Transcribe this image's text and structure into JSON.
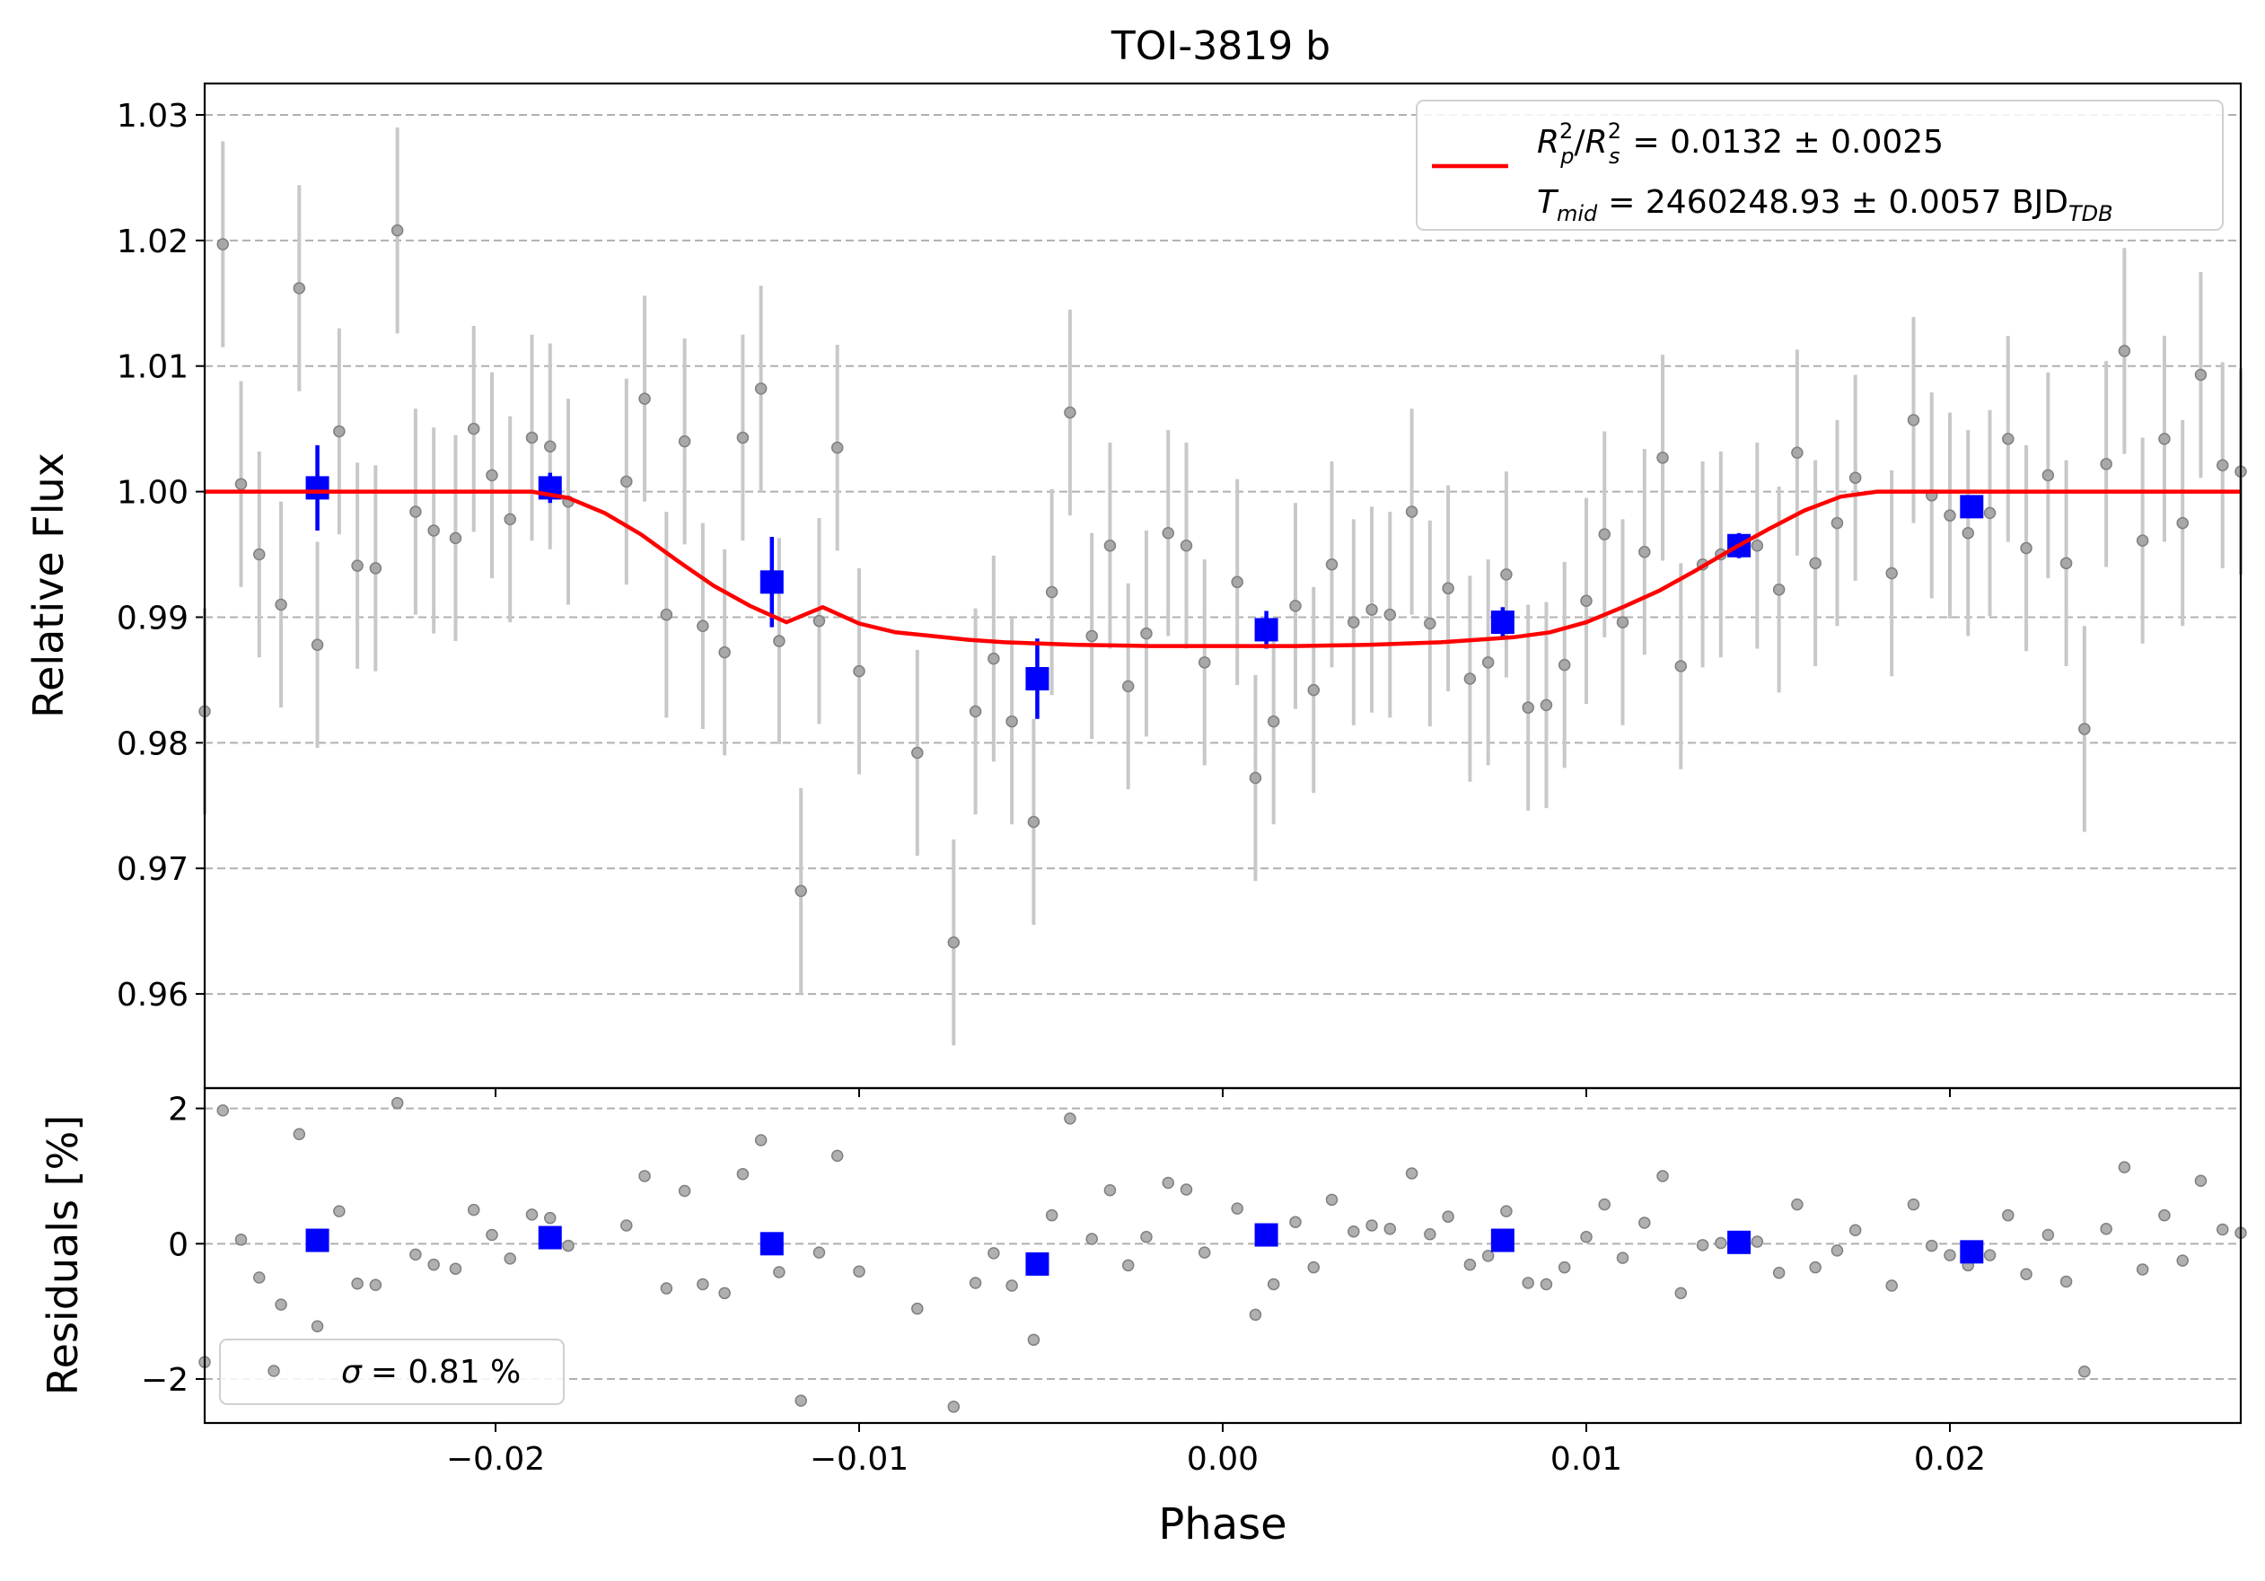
{
  "chart_data": {
    "type": "scatter",
    "title": "TOI-3819 b",
    "xlabel": "Phase",
    "xlim": [
      -0.028,
      0.028
    ],
    "xticks": [
      -0.02,
      -0.01,
      0.0,
      0.01,
      0.02
    ],
    "xtick_labels": [
      "−0.02",
      "−0.01",
      "0.00",
      "0.01",
      "0.02"
    ],
    "colors": {
      "raw": "#808080",
      "errbar": "#c8c8c8",
      "binned": "#0000ff",
      "model": "#ff0000",
      "grid": "#b0b0b0"
    },
    "flux_panel": {
      "ylabel": "Relative Flux",
      "ylim": [
        0.9525,
        1.0325
      ],
      "yticks": [
        0.96,
        0.97,
        0.98,
        0.99,
        1.0,
        1.01,
        1.02,
        1.03
      ],
      "ytick_labels": [
        "0.96",
        "0.97",
        "0.98",
        "0.99",
        "1.00",
        "1.01",
        "1.02",
        "1.03"
      ],
      "grid": true,
      "legend": {
        "placement": "top-right",
        "line1_lhs": "R²ₚ/R²ₛ",
        "line1_value": "= 0.0132 ± 0.0025",
        "line2_lhs": "T",
        "line2_sub": "mid",
        "line2_value": "= 2460248.93 ± 0.0057 BJD",
        "line2_unit_sub": "TDB"
      },
      "raw_err": 0.0082,
      "raw_points": [
        [
          -0.028,
          0.9825
        ],
        [
          -0.0275,
          1.0197
        ],
        [
          -0.027,
          1.0006
        ],
        [
          -0.0265,
          0.995
        ],
        [
          -0.0259,
          0.991
        ],
        [
          -0.0254,
          1.0162
        ],
        [
          -0.0249,
          0.9878
        ],
        [
          -0.0243,
          1.0048
        ],
        [
          -0.0238,
          0.9941
        ],
        [
          -0.0233,
          0.9939
        ],
        [
          -0.0227,
          1.0208
        ],
        [
          -0.0222,
          0.9984
        ],
        [
          -0.0217,
          0.9969
        ],
        [
          -0.0211,
          0.9963
        ],
        [
          -0.0206,
          1.005
        ],
        [
          -0.0201,
          1.0013
        ],
        [
          -0.0196,
          0.9978
        ],
        [
          -0.019,
          1.0043
        ],
        [
          -0.0185,
          1.0036
        ],
        [
          -0.018,
          0.9992
        ],
        [
          -0.0164,
          1.0008
        ],
        [
          -0.0159,
          1.0074
        ],
        [
          -0.0153,
          0.9902
        ],
        [
          -0.0148,
          1.004
        ],
        [
          -0.0143,
          0.9893
        ],
        [
          -0.0137,
          0.9872
        ],
        [
          -0.0132,
          1.0043
        ],
        [
          -0.0127,
          1.0082
        ],
        [
          -0.0122,
          0.9881
        ],
        [
          -0.0116,
          0.9682
        ],
        [
          -0.0111,
          0.9897
        ],
        [
          -0.0106,
          1.0035
        ],
        [
          -0.01,
          0.9857
        ],
        [
          -0.0084,
          0.9792
        ],
        [
          -0.0074,
          0.9641
        ],
        [
          -0.0068,
          0.9825
        ],
        [
          -0.0063,
          0.9867
        ],
        [
          -0.0058,
          0.9817
        ],
        [
          -0.0052,
          0.9737
        ],
        [
          -0.0047,
          0.992
        ],
        [
          -0.0042,
          1.0063
        ],
        [
          -0.0036,
          0.9885
        ],
        [
          -0.0031,
          0.9957
        ],
        [
          -0.0026,
          0.9845
        ],
        [
          -0.0021,
          0.9887
        ],
        [
          -0.0015,
          0.9967
        ],
        [
          -0.001,
          0.9957
        ],
        [
          -0.0005,
          0.9864
        ],
        [
          0.0004,
          0.9928
        ],
        [
          0.0009,
          0.9772
        ],
        [
          0.0014,
          0.9817
        ],
        [
          0.002,
          0.9909
        ],
        [
          0.0025,
          0.9842
        ],
        [
          0.003,
          0.9942
        ],
        [
          0.0036,
          0.9896
        ],
        [
          0.0041,
          0.9906
        ],
        [
          0.0046,
          0.9902
        ],
        [
          0.0052,
          0.9984
        ],
        [
          0.0057,
          0.9895
        ],
        [
          0.0062,
          0.9923
        ],
        [
          0.0068,
          0.9851
        ],
        [
          0.0073,
          0.9864
        ],
        [
          0.0078,
          0.9934
        ],
        [
          0.0084,
          0.9828
        ],
        [
          0.0089,
          0.983
        ],
        [
          0.0094,
          0.9862
        ],
        [
          0.01,
          0.9913
        ],
        [
          0.0105,
          0.9966
        ],
        [
          0.011,
          0.9896
        ],
        [
          0.0116,
          0.9952
        ],
        [
          0.0121,
          1.0027
        ],
        [
          0.0126,
          0.9861
        ],
        [
          0.0132,
          0.9942
        ],
        [
          0.0137,
          0.995
        ],
        [
          0.0147,
          0.9957
        ],
        [
          0.0153,
          0.9922
        ],
        [
          0.0158,
          1.0031
        ],
        [
          0.0163,
          0.9943
        ],
        [
          0.0169,
          0.9975
        ],
        [
          0.0174,
          1.0011
        ],
        [
          0.0184,
          0.9935
        ],
        [
          0.019,
          1.0057
        ],
        [
          0.0195,
          0.9997
        ],
        [
          0.02,
          0.9981
        ],
        [
          0.0205,
          0.9967
        ],
        [
          0.0211,
          0.9983
        ],
        [
          0.0216,
          1.0042
        ],
        [
          0.0221,
          0.9955
        ],
        [
          0.0227,
          1.0013
        ],
        [
          0.0232,
          0.9943
        ],
        [
          0.0237,
          0.9811
        ],
        [
          0.0243,
          1.0022
        ],
        [
          0.0248,
          1.0112
        ],
        [
          0.0253,
          0.9961
        ],
        [
          0.0259,
          1.0042
        ],
        [
          0.0264,
          0.9975
        ],
        [
          0.0269,
          1.0093
        ],
        [
          0.0275,
          1.0021
        ],
        [
          0.028,
          1.0016
        ]
      ],
      "binned_points": [
        {
          "x": -0.0249,
          "y": 1.0003,
          "err": 0.0034
        },
        {
          "x": -0.0185,
          "y": 1.0003,
          "err": 0.0012
        },
        {
          "x": -0.0124,
          "y": 0.9928,
          "err": 0.0036
        },
        {
          "x": -0.0051,
          "y": 0.9851,
          "err": 0.0032
        },
        {
          "x": 0.0012,
          "y": 0.989,
          "err": 0.0015
        },
        {
          "x": 0.0077,
          "y": 0.9896,
          "err": 0.0012
        },
        {
          "x": 0.0142,
          "y": 0.9957,
          "err": 0.001
        },
        {
          "x": 0.0206,
          "y": 0.9988,
          "err": 0.0008
        }
      ],
      "model_curve": {
        "x": [
          -0.028,
          -0.019,
          -0.018,
          -0.017,
          -0.016,
          -0.015,
          -0.014,
          -0.013,
          -0.012,
          -0.011,
          -0.01,
          -0.009,
          -0.008,
          -0.007,
          -0.006,
          -0.004,
          -0.002,
          0.0,
          0.002,
          0.004,
          0.006,
          0.007,
          0.008,
          0.009,
          0.01,
          0.011,
          0.012,
          0.013,
          0.014,
          0.015,
          0.016,
          0.017,
          0.018,
          0.019,
          0.028
        ],
        "y": [
          1.0,
          1.0,
          0.9995,
          0.9983,
          0.9966,
          0.9945,
          0.9925,
          0.9909,
          0.9896,
          0.9908,
          0.9895,
          0.9888,
          0.9885,
          0.9882,
          0.988,
          0.9878,
          0.9877,
          0.9877,
          0.9877,
          0.9878,
          0.988,
          0.9882,
          0.9884,
          0.9888,
          0.9896,
          0.9908,
          0.9921,
          0.9937,
          0.9954,
          0.997,
          0.9985,
          0.9996,
          1.0,
          1.0,
          1.0
        ]
      }
    },
    "residual_panel": {
      "ylabel": "Residuals [%]",
      "ylim": [
        -2.65,
        2.3
      ],
      "yticks": [
        -2,
        0,
        2
      ],
      "ytick_labels": [
        "−2",
        "0",
        "2"
      ],
      "grid": true,
      "legend": {
        "placement": "bottom-left",
        "sigma_symbol": "σ",
        "sigma_value": "= 0.81 %"
      },
      "raw_points": [
        [
          -0.028,
          -1.75
        ],
        [
          -0.0275,
          1.97
        ],
        [
          -0.027,
          0.06
        ],
        [
          -0.0265,
          -0.5
        ],
        [
          -0.0259,
          -0.9
        ],
        [
          -0.0254,
          1.62
        ],
        [
          -0.0249,
          -1.22
        ],
        [
          -0.0243,
          0.48
        ],
        [
          -0.0238,
          -0.59
        ],
        [
          -0.0233,
          -0.61
        ],
        [
          -0.0227,
          2.08
        ],
        [
          -0.0222,
          -0.16
        ],
        [
          -0.0217,
          -0.31
        ],
        [
          -0.0211,
          -0.37
        ],
        [
          -0.0206,
          0.5
        ],
        [
          -0.0201,
          0.13
        ],
        [
          -0.0196,
          -0.22
        ],
        [
          -0.019,
          0.43
        ],
        [
          -0.0185,
          0.38
        ],
        [
          -0.018,
          -0.03
        ],
        [
          -0.0164,
          0.27
        ],
        [
          -0.0159,
          1.0
        ],
        [
          -0.0153,
          -0.66
        ],
        [
          -0.0148,
          0.78
        ],
        [
          -0.0143,
          -0.6
        ],
        [
          -0.0137,
          -0.73
        ],
        [
          -0.0132,
          1.03
        ],
        [
          -0.0127,
          1.53
        ],
        [
          -0.0122,
          -0.42
        ],
        [
          -0.0116,
          -2.32
        ],
        [
          -0.0111,
          -0.13
        ],
        [
          -0.0106,
          1.3
        ],
        [
          -0.01,
          -0.41
        ],
        [
          -0.0084,
          -0.96
        ],
        [
          -0.0074,
          -2.41
        ],
        [
          -0.0068,
          -0.58
        ],
        [
          -0.0063,
          -0.14
        ],
        [
          -0.0058,
          -0.62
        ],
        [
          -0.0052,
          -1.42
        ],
        [
          -0.0047,
          0.42
        ],
        [
          -0.0042,
          1.85
        ],
        [
          -0.0036,
          0.07
        ],
        [
          -0.0031,
          0.79
        ],
        [
          -0.0026,
          -0.32
        ],
        [
          -0.0021,
          0.1
        ],
        [
          -0.0015,
          0.9
        ],
        [
          -0.001,
          0.8
        ],
        [
          -0.0005,
          -0.13
        ],
        [
          0.0004,
          0.52
        ],
        [
          0.0009,
          -1.05
        ],
        [
          0.0014,
          -0.6
        ],
        [
          0.002,
          0.32
        ],
        [
          0.0025,
          -0.35
        ],
        [
          0.003,
          0.65
        ],
        [
          0.0036,
          0.18
        ],
        [
          0.0041,
          0.27
        ],
        [
          0.0046,
          0.22
        ],
        [
          0.0052,
          1.04
        ],
        [
          0.0057,
          0.14
        ],
        [
          0.0062,
          0.4
        ],
        [
          0.0068,
          -0.31
        ],
        [
          0.0073,
          -0.18
        ],
        [
          0.0078,
          0.48
        ],
        [
          0.0084,
          -0.58
        ],
        [
          0.0089,
          -0.6
        ],
        [
          0.0094,
          -0.35
        ],
        [
          0.01,
          0.1
        ],
        [
          0.0105,
          0.58
        ],
        [
          0.011,
          -0.21
        ],
        [
          0.0116,
          0.31
        ],
        [
          0.0121,
          1.0
        ],
        [
          0.0126,
          -0.73
        ],
        [
          0.0132,
          -0.02
        ],
        [
          0.0137,
          0.01
        ],
        [
          0.0147,
          0.03
        ],
        [
          0.0153,
          -0.43
        ],
        [
          0.0158,
          0.58
        ],
        [
          0.0163,
          -0.35
        ],
        [
          0.0169,
          -0.1
        ],
        [
          0.0174,
          0.2
        ],
        [
          0.0184,
          -0.62
        ],
        [
          0.019,
          0.58
        ],
        [
          0.0195,
          -0.03
        ],
        [
          0.02,
          -0.17
        ],
        [
          0.0205,
          -0.32
        ],
        [
          0.0211,
          -0.17
        ],
        [
          0.0216,
          0.42
        ],
        [
          0.0221,
          -0.45
        ],
        [
          0.0227,
          0.13
        ],
        [
          0.0232,
          -0.56
        ],
        [
          0.0237,
          -1.89
        ],
        [
          0.0243,
          0.22
        ],
        [
          0.0248,
          1.13
        ],
        [
          0.0253,
          -0.38
        ],
        [
          0.0259,
          0.42
        ],
        [
          0.0264,
          -0.25
        ],
        [
          0.0269,
          0.93
        ],
        [
          0.0275,
          0.21
        ],
        [
          0.028,
          0.16
        ]
      ],
      "binned_points": [
        [
          -0.0249,
          0.05
        ],
        [
          -0.0185,
          0.09
        ],
        [
          -0.0124,
          0.0
        ],
        [
          -0.0051,
          -0.3
        ],
        [
          0.0012,
          0.13
        ],
        [
          0.0077,
          0.05
        ],
        [
          0.0142,
          0.02
        ],
        [
          0.0206,
          -0.12
        ]
      ]
    }
  }
}
